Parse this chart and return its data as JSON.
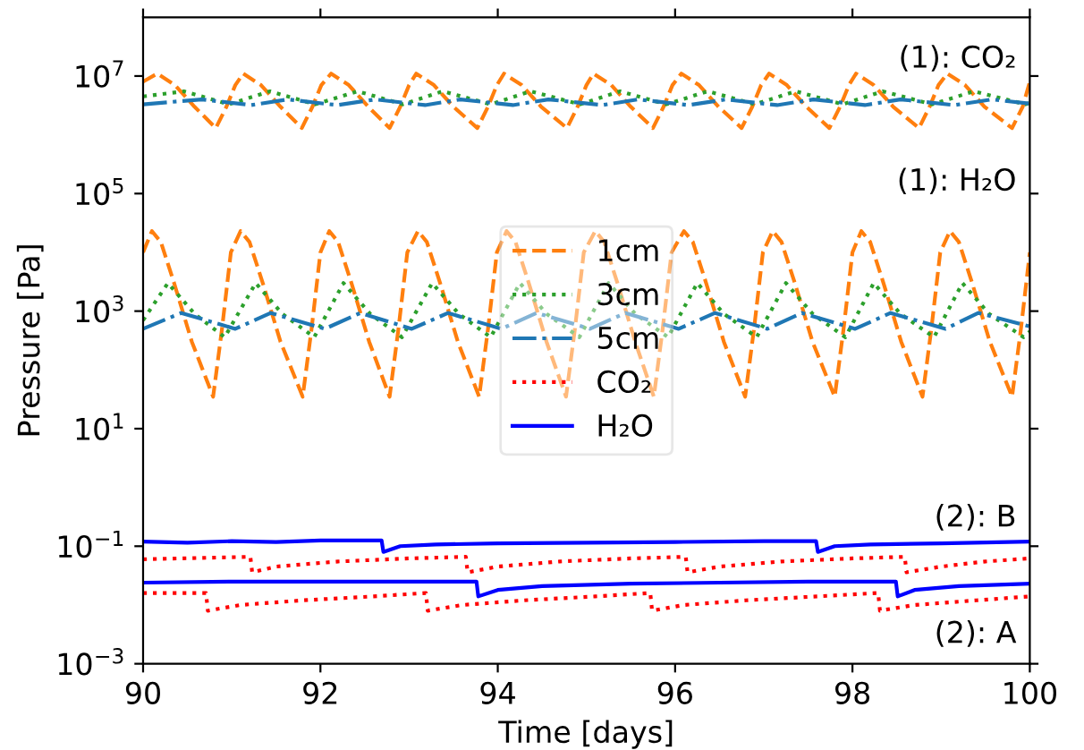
{
  "chart_data": {
    "type": "line",
    "xlabel": "Time [days]",
    "ylabel": "Pressure [Pa]",
    "log": "y",
    "grid": false,
    "legend": "center",
    "marker": "none",
    "xlim": [
      90,
      100
    ],
    "xticks": [
      90,
      92,
      94,
      96,
      98,
      100
    ],
    "ylim": [
      0.001,
      100000000
    ],
    "yticks": [
      {
        "value": 0.001,
        "label": "10$^{−3}$"
      },
      {
        "value": 0.1,
        "label": "10$^{−1}$"
      },
      {
        "value": 10,
        "label": "10$^{1}$"
      },
      {
        "value": 1000,
        "label": "10$^{3}$"
      },
      {
        "value": 100000,
        "label": "10$^{5}$"
      },
      {
        "value": 10000000,
        "label": "10$^{7}$"
      }
    ],
    "annotations": [
      "(1): CO₂",
      "(1): H₂O",
      "(2): B",
      "(2): A"
    ],
    "series": [
      {
        "name": "1cm",
        "color": "#ff7f0e",
        "line_style": "dashed",
        "x": [
          90,
          90.16,
          90.36,
          90.58,
          90.82,
          90.94,
          91.04,
          91.13,
          91.33,
          91.55,
          91.79,
          91.91,
          92.01,
          92.12,
          92.32,
          92.54,
          92.78,
          92.9,
          93.0,
          93.08,
          93.28,
          93.5,
          93.77,
          93.89,
          93.99,
          94.07,
          94.27,
          94.49,
          94.78,
          94.9,
          95.0,
          95.08,
          95.28,
          95.5,
          95.75,
          95.87,
          95.97,
          96.07,
          96.27,
          96.49,
          96.75,
          96.87,
          96.97,
          97.06,
          97.26,
          97.48,
          97.74,
          97.86,
          97.96,
          98.04,
          98.24,
          98.46,
          98.75,
          98.87,
          98.97,
          99.07,
          99.27,
          99.49,
          99.8,
          99.92,
          100
        ],
        "values": [
          8000000.0,
          11000000.0,
          7000000.0,
          3000000.0,
          1300000.0,
          3000000.0,
          7000000.0,
          11000000.0,
          7000000.0,
          3000000.0,
          1300000.0,
          3000000.0,
          7000000.0,
          11000000.0,
          7000000.0,
          3000000.0,
          1300000.0,
          3000000.0,
          7000000.0,
          11000000.0,
          7000000.0,
          3000000.0,
          1300000.0,
          3000000.0,
          7000000.0,
          11000000.0,
          7000000.0,
          3000000.0,
          1300000.0,
          3000000.0,
          7000000.0,
          11000000.0,
          7000000.0,
          3000000.0,
          1300000.0,
          3000000.0,
          7000000.0,
          11000000.0,
          7000000.0,
          3000000.0,
          1300000.0,
          3000000.0,
          7000000.0,
          11000000.0,
          7000000.0,
          3000000.0,
          1300000.0,
          3000000.0,
          7000000.0,
          11000000.0,
          7000000.0,
          3000000.0,
          1300000.0,
          3000000.0,
          7000000.0,
          11000000.0,
          7000000.0,
          3000000.0,
          1300000.0,
          3000000.0,
          8000000.0
        ]
      },
      {
        "name": "3cm",
        "color": "#2ca02c",
        "line_style": "dotted",
        "x": [
          90,
          90.46,
          90.97,
          91.43,
          91.94,
          92.42,
          92.93,
          93.38,
          93.92,
          94.37,
          94.93,
          95.38,
          95.9,
          96.37,
          96.9,
          97.36,
          97.89,
          98.34,
          98.9,
          99.37,
          99.95,
          100
        ],
        "values": [
          4500000.0,
          5500000.0,
          3300000.0,
          5500000.0,
          3300000.0,
          5500000.0,
          3300000.0,
          5500000.0,
          3300000.0,
          5500000.0,
          3300000.0,
          5500000.0,
          3300000.0,
          5500000.0,
          3300000.0,
          5500000.0,
          3300000.0,
          5500000.0,
          3300000.0,
          5500000.0,
          3300000.0,
          3500000.0
        ]
      },
      {
        "name": "5cm",
        "color": "#1f77b4",
        "line_style": "dashdot",
        "x": [
          90,
          90.66,
          91.22,
          91.63,
          92.19,
          92.62,
          93.18,
          93.58,
          94.17,
          94.57,
          95.18,
          95.58,
          96.15,
          96.57,
          97.15,
          97.56,
          98.14,
          98.54,
          99.15,
          99.57,
          100
        ],
        "values": [
          3300000.0,
          4000000.0,
          3200000.0,
          4000000.0,
          3200000.0,
          4000000.0,
          3200000.0,
          4000000.0,
          3200000.0,
          4000000.0,
          3200000.0,
          4000000.0,
          3200000.0,
          4000000.0,
          3200000.0,
          4000000.0,
          3200000.0,
          4000000.0,
          3200000.0,
          4000000.0,
          3400000.0
        ]
      },
      {
        "name": "CO₂",
        "color": "#ff0000",
        "line_style": "dotted",
        "x": [
          90,
          91.21,
          91.23,
          91.5,
          92.2,
          93,
          93.64,
          93.66,
          94,
          94.7,
          95.5,
          96.12,
          96.14,
          96.5,
          97.2,
          98,
          98.59,
          98.61,
          99,
          99.5,
          100
        ],
        "values": [
          0.06,
          0.066,
          0.036,
          0.045,
          0.055,
          0.062,
          0.066,
          0.036,
          0.045,
          0.055,
          0.062,
          0.066,
          0.036,
          0.045,
          0.055,
          0.062,
          0.066,
          0.036,
          0.045,
          0.055,
          0.062
        ]
      },
      {
        "name": "H₂O",
        "color": "#0000ff",
        "line_style": "solid",
        "x": [
          90,
          90.5,
          91,
          91.5,
          92,
          92.5,
          92.69,
          92.71,
          92.9,
          93.3,
          94,
          95,
          96,
          97,
          97.59,
          97.61,
          97.8,
          98.2,
          99,
          100
        ],
        "values": [
          0.12,
          0.115,
          0.122,
          0.118,
          0.125,
          0.125,
          0.125,
          0.08,
          0.1,
          0.107,
          0.112,
          0.115,
          0.118,
          0.122,
          0.122,
          0.08,
          0.1,
          0.107,
          0.112,
          0.12
        ]
      },
      {
        "color": "#ff7f0e",
        "line_style": "dashed",
        "x": [
          90,
          90.1,
          90.2,
          90.35,
          90.55,
          90.79,
          90.89,
          90.99,
          91.1,
          91.2,
          91.35,
          91.55,
          91.8,
          91.9,
          92.0,
          92.1,
          92.2,
          92.35,
          92.55,
          92.78,
          92.88,
          92.98,
          93.1,
          93.2,
          93.35,
          93.55,
          93.79,
          93.89,
          93.99,
          94.1,
          94.2,
          94.35,
          94.55,
          94.77,
          94.87,
          94.97,
          95.1,
          95.2,
          95.35,
          95.55,
          95.76,
          95.86,
          95.96,
          96.1,
          96.2,
          96.35,
          96.55,
          96.79,
          96.89,
          96.99,
          97.1,
          97.2,
          97.35,
          97.55,
          97.8,
          97.9,
          98.0,
          98.1,
          98.2,
          98.35,
          98.55,
          98.79,
          98.89,
          98.99,
          99.1,
          99.2,
          99.35,
          99.55,
          99.8,
          99.9,
          100.0
        ],
        "values": [
          10000.0,
          23000.0,
          15000.0,
          3000.0,
          300,
          35,
          500,
          10000.0,
          23000.0,
          15000.0,
          3000.0,
          300,
          35,
          500,
          10000.0,
          23000.0,
          15000.0,
          3000.0,
          300,
          35,
          500,
          10000.0,
          23000.0,
          15000.0,
          3000.0,
          300,
          35,
          500,
          10000.0,
          23000.0,
          15000.0,
          3000.0,
          300,
          35,
          500,
          10000.0,
          23000.0,
          15000.0,
          3000.0,
          300,
          35,
          500,
          10000.0,
          23000.0,
          15000.0,
          3000.0,
          300,
          35,
          500,
          10000.0,
          23000.0,
          15000.0,
          3000.0,
          300,
          35,
          500,
          10000.0,
          23000.0,
          15000.0,
          3000.0,
          300,
          35,
          500,
          10000.0,
          23000.0,
          15000.0,
          3000.0,
          300,
          35,
          500,
          10000.0
        ]
      },
      {
        "color": "#2ca02c",
        "line_style": "dotted",
        "x": [
          90,
          90.28,
          90.58,
          90.92,
          91.27,
          91.57,
          91.93,
          92.26,
          92.56,
          92.92,
          93.26,
          93.56,
          93.92,
          94.25,
          94.55,
          94.92,
          95.25,
          95.55,
          95.92,
          96.25,
          96.55,
          96.92,
          97.25,
          97.55,
          97.92,
          98.24,
          98.54,
          98.92,
          99.24,
          99.54,
          99.93,
          100
        ],
        "values": [
          700,
          3000,
          900,
          360,
          3000,
          900,
          360,
          3000,
          900,
          360,
          3000,
          900,
          360,
          3000,
          900,
          360,
          3000,
          900,
          360,
          3000,
          900,
          360,
          3000,
          900,
          360,
          3000,
          900,
          360,
          3000,
          900,
          360,
          450
        ]
      },
      {
        "color": "#1f77b4",
        "line_style": "dashdot",
        "x": [
          90,
          90.43,
          91.04,
          91.44,
          92.05,
          92.45,
          93.03,
          93.44,
          94.04,
          94.44,
          95.04,
          95.44,
          96.04,
          96.45,
          97.04,
          97.43,
          98.03,
          98.43,
          99.05,
          99.42,
          100
        ],
        "values": [
          500,
          930,
          500,
          930,
          500,
          930,
          500,
          930,
          500,
          930,
          500,
          930,
          500,
          930,
          500,
          930,
          500,
          930,
          500,
          930,
          550
        ]
      },
      {
        "color": "#ff0000",
        "line_style": "dotted",
        "x": [
          90,
          90.71,
          90.73,
          91.1,
          91.8,
          92.6,
          93.19,
          93.21,
          93.6,
          94.3,
          95.1,
          95.72,
          95.74,
          96.1,
          96.8,
          97.6,
          98.29,
          98.31,
          98.7,
          99.4,
          100
        ],
        "values": [
          0.016,
          0.016,
          0.008,
          0.01,
          0.012,
          0.014,
          0.016,
          0.008,
          0.01,
          0.012,
          0.014,
          0.016,
          0.008,
          0.01,
          0.012,
          0.014,
          0.016,
          0.008,
          0.01,
          0.012,
          0.014
        ]
      },
      {
        "color": "#0000ff",
        "line_style": "solid",
        "x": [
          90,
          91,
          92,
          93,
          93.76,
          93.78,
          94,
          94.5,
          95.5,
          96.5,
          97.5,
          98.49,
          98.51,
          98.7,
          99.2,
          100
        ],
        "values": [
          0.024,
          0.025,
          0.025,
          0.025,
          0.025,
          0.014,
          0.018,
          0.021,
          0.023,
          0.024,
          0.025,
          0.025,
          0.014,
          0.018,
          0.021,
          0.023
        ]
      }
    ]
  }
}
